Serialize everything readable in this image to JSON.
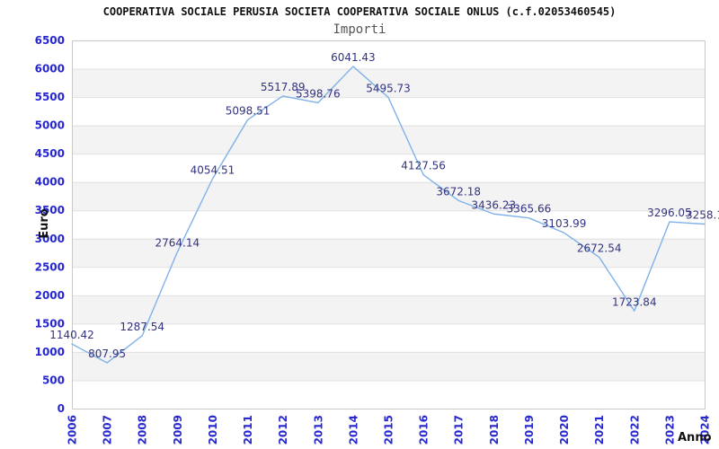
{
  "chart_data": {
    "type": "line",
    "title": "COOPERATIVA SOCIALE PERUSIA SOCIETA COOPERATIVA SOCIALE ONLUS (c.f.02053460545)",
    "subtitle": "Importi",
    "xlabel": "Anno",
    "ylabel": "Euro",
    "categories": [
      "2006",
      "2007",
      "2008",
      "2009",
      "2010",
      "2011",
      "2012",
      "2013",
      "2014",
      "2015",
      "2016",
      "2017",
      "2018",
      "2019",
      "2020",
      "2021",
      "2022",
      "2023",
      "2024"
    ],
    "values": [
      1140.42,
      807.95,
      1287.54,
      2764.14,
      4054.51,
      5098.51,
      5517.89,
      5398.76,
      6041.43,
      5495.73,
      4127.56,
      3672.18,
      3436.23,
      3365.66,
      3103.99,
      2672.54,
      1723.84,
      3296.05,
      3258.1
    ],
    "point_labels": [
      "1140.42",
      "807.95",
      "1287.54",
      "2764.14",
      "4054.51",
      "5098.51",
      "5517.89",
      "5398.76",
      "6041.43",
      "5495.73",
      "4127.56",
      "3672.18",
      "3436.23",
      "3365.66",
      "3103.99",
      "2672.54",
      "1723.84",
      "3296.05",
      "3258.1"
    ],
    "ylim": [
      0,
      6500
    ],
    "ytick_step": 500,
    "grid": "horizontal",
    "bands": "alternating",
    "legend_position": "none",
    "colors": {
      "line": "#7FB2E8",
      "tick_label": "#2727CF",
      "point_label": "#333380",
      "band": "#F3F3F3",
      "grid": "#E0E0E0",
      "border": "#C9C9C9",
      "title": "#111111",
      "subtitle": "#555555",
      "axis_title": "#111111"
    }
  }
}
